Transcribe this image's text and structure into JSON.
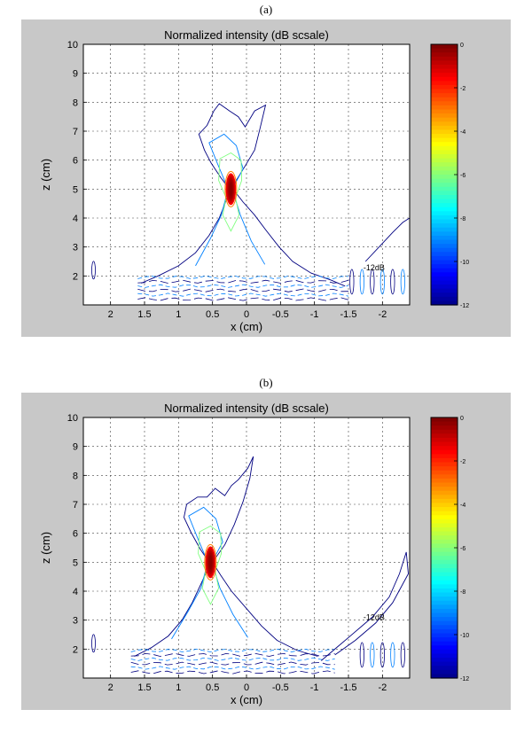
{
  "chart_data": [
    {
      "type": "contour",
      "panel_label": "(a)",
      "title": "Normalized intensity (dB scsale)",
      "xlabel": "x (cm)",
      "ylabel": "z (cm)",
      "x_range": [
        2.4,
        -2.4
      ],
      "x_ticks": [
        "2",
        "1.5",
        "1",
        "0.5",
        "0",
        "-0.5",
        "-1",
        "-1.5",
        "-2"
      ],
      "y_range": [
        1,
        10
      ],
      "y_ticks": [
        "2",
        "3",
        "4",
        "5",
        "6",
        "7",
        "8",
        "9",
        "10"
      ],
      "grid": true,
      "colorbar_range": [
        -12,
        0
      ],
      "colorbar_ticks": [
        "0",
        "-2",
        "-4",
        "-6",
        "-8",
        "-10",
        "-12"
      ],
      "annotation": "-12dB",
      "focus_center": [
        0.23,
        5.0
      ],
      "contour_levels_dB": [
        -12,
        -9,
        -6,
        -3,
        0
      ]
    },
    {
      "type": "contour",
      "panel_label": "(b)",
      "title": "Normalized intensity (dB scsale)",
      "xlabel": "x (cm)",
      "ylabel": "z (cm)",
      "x_range": [
        2.4,
        -2.4
      ],
      "x_ticks": [
        "2",
        "1.5",
        "1",
        "0.5",
        "0",
        "-0.5",
        "-1",
        "-1.5",
        "-2"
      ],
      "y_range": [
        1,
        10
      ],
      "y_ticks": [
        "2",
        "3",
        "4",
        "5",
        "6",
        "7",
        "8",
        "9",
        "10"
      ],
      "grid": true,
      "colorbar_range": [
        -12,
        0
      ],
      "colorbar_ticks": [
        "0",
        "-2",
        "-4",
        "-6",
        "-8",
        "-10",
        "-12"
      ],
      "annotation": "-12dB",
      "focus_center": [
        0.53,
        5.0
      ],
      "contour_levels_dB": [
        -12,
        -9,
        -6,
        -3,
        0
      ]
    }
  ]
}
